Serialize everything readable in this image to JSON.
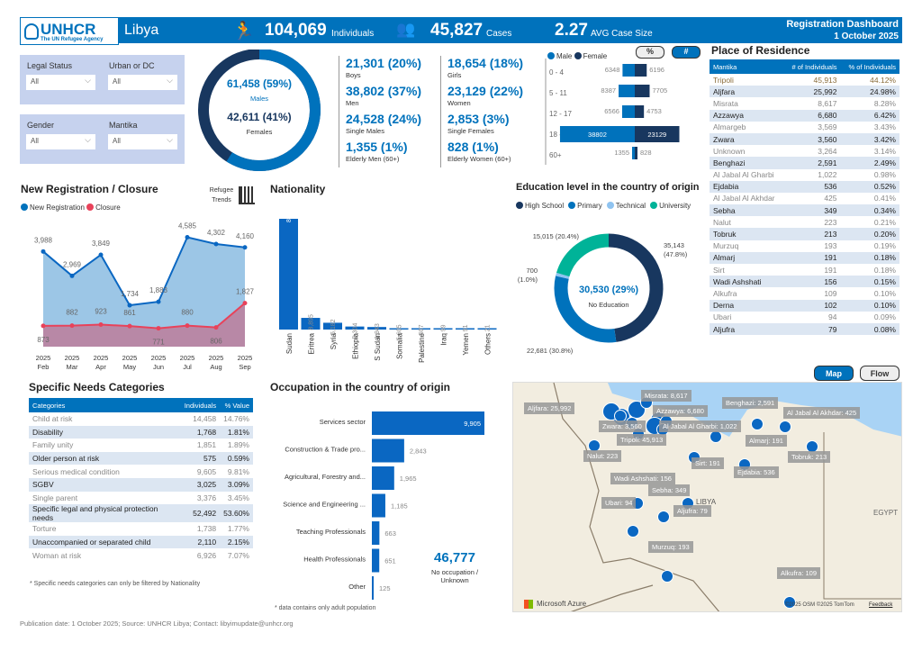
{
  "header": {
    "org": "UNHCR",
    "org_sub": "The UN Refugee Agency",
    "country": "Libya",
    "individuals": "104,069",
    "individuals_label": "Individuals",
    "cases": "45,827",
    "cases_label": "Cases",
    "avg": "2.27",
    "avg_label": "AVG Case Size",
    "title": "Registration Dashboard",
    "date": "1 October 2025"
  },
  "filters": [
    {
      "label": "Legal Status",
      "value": "All"
    },
    {
      "label": "Urban or DC",
      "value": "All"
    },
    {
      "label": "Gender",
      "value": "All"
    },
    {
      "label": "Mantika",
      "value": "All"
    }
  ],
  "gender": {
    "males": "61,458 (59%)",
    "males_label": "Males",
    "females": "42,611 (41%)",
    "females_label": "Females",
    "male_pct": 59,
    "female_pct": 41
  },
  "stats": [
    {
      "v": "21,301 (20%)",
      "l": "Boys"
    },
    {
      "v": "18,654 (18%)",
      "l": "Girls"
    },
    {
      "v": "38,802 (37%)",
      "l": "Men"
    },
    {
      "v": "23,129 (22%)",
      "l": "Women"
    },
    {
      "v": "24,528 (24%)",
      "l": "Single Males"
    },
    {
      "v": "2,853 (3%)",
      "l": "Single Females"
    },
    {
      "v": "1,355 (1%)",
      "l": "Elderly Men (60+)"
    },
    {
      "v": "828 (1%)",
      "l": "Elderly Women (60+)"
    }
  ],
  "colors": {
    "primary": "#0072bc",
    "navy": "#18375f",
    "teal": "#00b398",
    "light": "#8fc3f0",
    "closure": "#e8425a"
  },
  "pyramid": {
    "legend_male": "Male",
    "legend_female": "Female",
    "toggle_pct": "%",
    "toggle_num": "#",
    "ages": [
      "0 - 4",
      "5 - 11",
      "12 - 17",
      "18 - 59",
      "60+"
    ],
    "male": [
      6348,
      8387,
      6566,
      38802,
      1355
    ],
    "female": [
      6196,
      7705,
      4753,
      23129,
      828
    ]
  },
  "residence": {
    "title": "Place of Residence",
    "headers": [
      "Mantika",
      "# of Individuals",
      "% of Individuals"
    ],
    "rows": [
      [
        "Tripoli",
        "45,913",
        "44.12%"
      ],
      [
        "Aljfara",
        "25,992",
        "24.98%"
      ],
      [
        "Misrata",
        "8,617",
        "8.28%"
      ],
      [
        "Azzawya",
        "6,680",
        "6.42%"
      ],
      [
        "Almargeb",
        "3,569",
        "3.43%"
      ],
      [
        "Zwara",
        "3,560",
        "3.42%"
      ],
      [
        "Unknown",
        "3,264",
        "3.14%"
      ],
      [
        "Benghazi",
        "2,591",
        "2.49%"
      ],
      [
        "Al Jabal Al Gharbi",
        "1,022",
        "0.98%"
      ],
      [
        "Ejdabia",
        "536",
        "0.52%"
      ],
      [
        "Al Jabal Al Akhdar",
        "425",
        "0.41%"
      ],
      [
        "Sebha",
        "349",
        "0.34%"
      ],
      [
        "Nalut",
        "223",
        "0.21%"
      ],
      [
        "Tobruk",
        "213",
        "0.20%"
      ],
      [
        "Murzuq",
        "193",
        "0.19%"
      ],
      [
        "Almarj",
        "191",
        "0.18%"
      ],
      [
        "Sirt",
        "191",
        "0.18%"
      ],
      [
        "Wadi Ashshati",
        "156",
        "0.15%"
      ],
      [
        "Alkufra",
        "109",
        "0.10%"
      ],
      [
        "Derna",
        "102",
        "0.10%"
      ],
      [
        "Ubari",
        "94",
        "0.09%"
      ],
      [
        "Aljufra",
        "79",
        "0.08%"
      ]
    ]
  },
  "trends": {
    "title": "New Registration / Closure",
    "refugee_trends": "Refugee Trends",
    "legend_reg": "New Registration",
    "legend_closure": "Closure"
  },
  "nationality": {
    "title": "Nationality"
  },
  "education": {
    "title": "Education level in the country of origin",
    "legend": [
      "High School",
      "Primary",
      "Technical",
      "University"
    ],
    "center_value": "30,530 (29%)",
    "center_label": "No Education",
    "labels": [
      "35,143 (47.8%)",
      "22,681 (30.8%)",
      "700 (1.0%)",
      "15,015 (20.4%)"
    ]
  },
  "needs": {
    "title": "Specific Needs Categories",
    "headers": [
      "Categories",
      "Individuals",
      "% Value"
    ],
    "rows": [
      [
        "Child at risk",
        "14,458",
        "14.76%"
      ],
      [
        "Disability",
        "1,768",
        "1.81%"
      ],
      [
        "Family unity",
        "1,851",
        "1.89%"
      ],
      [
        "Older person at risk",
        "575",
        "0.59%"
      ],
      [
        "Serious medical condition",
        "9,605",
        "9.81%"
      ],
      [
        "SGBV",
        "3,025",
        "3.09%"
      ],
      [
        "Single parent",
        "3,376",
        "3.45%"
      ],
      [
        "Specific legal and physical protection needs",
        "52,492",
        "53.60%"
      ],
      [
        "Torture",
        "1,738",
        "1.77%"
      ],
      [
        "Unaccompanied or separated child",
        "2,110",
        "2.15%"
      ],
      [
        "Woman at risk",
        "6,926",
        "7.07%"
      ]
    ],
    "note": "* Specific needs categories can only be filtered by Nationality"
  },
  "occupation": {
    "title": "Occupation in the country of origin",
    "no_occ_value": "46,777",
    "no_occ_label": "No occupation / Unknown",
    "note": "* data contains only adult population"
  },
  "map": {
    "btn_map": "Map",
    "btn_flow": "Flow",
    "country_label": "LIBYA",
    "neighbor": "EGYPT",
    "azure": "Microsoft Azure",
    "credits": "©2025 OSM ©2025 TomTom",
    "feedback": "Feedback",
    "labels": [
      "Misrata: 8,617",
      "Aljfara: 25,992",
      "Azzawya: 6,680",
      "Zwara: 3,560",
      "Al Jabal Al Gharbi: 1,022",
      "Tripoli: 45,913",
      "Benghazi: 2,591",
      "Al Jabal Al Akhdar: 425",
      "Almarj: 191",
      "Tobruk: 213",
      "Nalut: 223",
      "Sirt: 191",
      "Ejdabia: 536",
      "Wadi Ashshati: 156",
      "Sebha: 349",
      "Ubari: 94",
      "Aljufra: 79",
      "Murzuq: 193",
      "Alkufra: 109"
    ]
  },
  "footer": "Publication date: 1 October 2025; Source: UNHCR Libya; Contact: libyimupdate@unhcr.org",
  "chart_data": [
    {
      "type": "area",
      "title": "New Registration / Closure",
      "categories": [
        "2025 Feb",
        "2025 Mar",
        "2025 Apr",
        "2025 May",
        "2025 Jun",
        "2025 Jul",
        "2025 Aug",
        "2025 Sep"
      ],
      "series": [
        {
          "name": "New Registration",
          "values": [
            3988,
            2969,
            3849,
            1734,
            1883,
            4585,
            4302,
            4160
          ]
        },
        {
          "name": "Closure",
          "values": [
            873,
            882,
            923,
            861,
            771,
            880,
            806,
            1827
          ]
        }
      ],
      "legend": "top-left"
    },
    {
      "type": "bar",
      "title": "Nationality",
      "categories": [
        "Sudan",
        "Eritrea",
        "Syria",
        "Ethiopia",
        "S Sudan",
        "Somalia",
        "Palestine",
        "Iraq",
        "Yemen",
        "Others"
      ],
      "values": [
        84422,
        8895,
        5182,
        2304,
        1943,
        605,
        507,
        99,
        91,
        21
      ]
    },
    {
      "type": "pie",
      "title": "Education level in the country of origin",
      "categories": [
        "High School",
        "Primary",
        "Technical",
        "University"
      ],
      "values": [
        35143,
        22681,
        700,
        15015
      ],
      "percent": [
        47.8,
        30.8,
        1.0,
        20.4
      ]
    },
    {
      "type": "bar",
      "orientation": "horizontal",
      "title": "Occupation in the country of origin",
      "categories": [
        "Services sector",
        "Construction & Trade pro...",
        "Agricultural, Forestry and...",
        "Science and Engineering ...",
        "Teaching Professionals",
        "Health Professionals",
        "Other"
      ],
      "values": [
        9905,
        2843,
        1965,
        1185,
        663,
        651,
        125
      ]
    },
    {
      "type": "bar",
      "orientation": "horizontal",
      "title": "Age pyramid",
      "categories": [
        "0 - 4",
        "5 - 11",
        "12 - 17",
        "18 - 59",
        "60+"
      ],
      "series": [
        {
          "name": "Male",
          "values": [
            6348,
            8387,
            6566,
            38802,
            1355
          ]
        },
        {
          "name": "Female",
          "values": [
            6196,
            7705,
            4753,
            23129,
            828
          ]
        }
      ]
    }
  ]
}
